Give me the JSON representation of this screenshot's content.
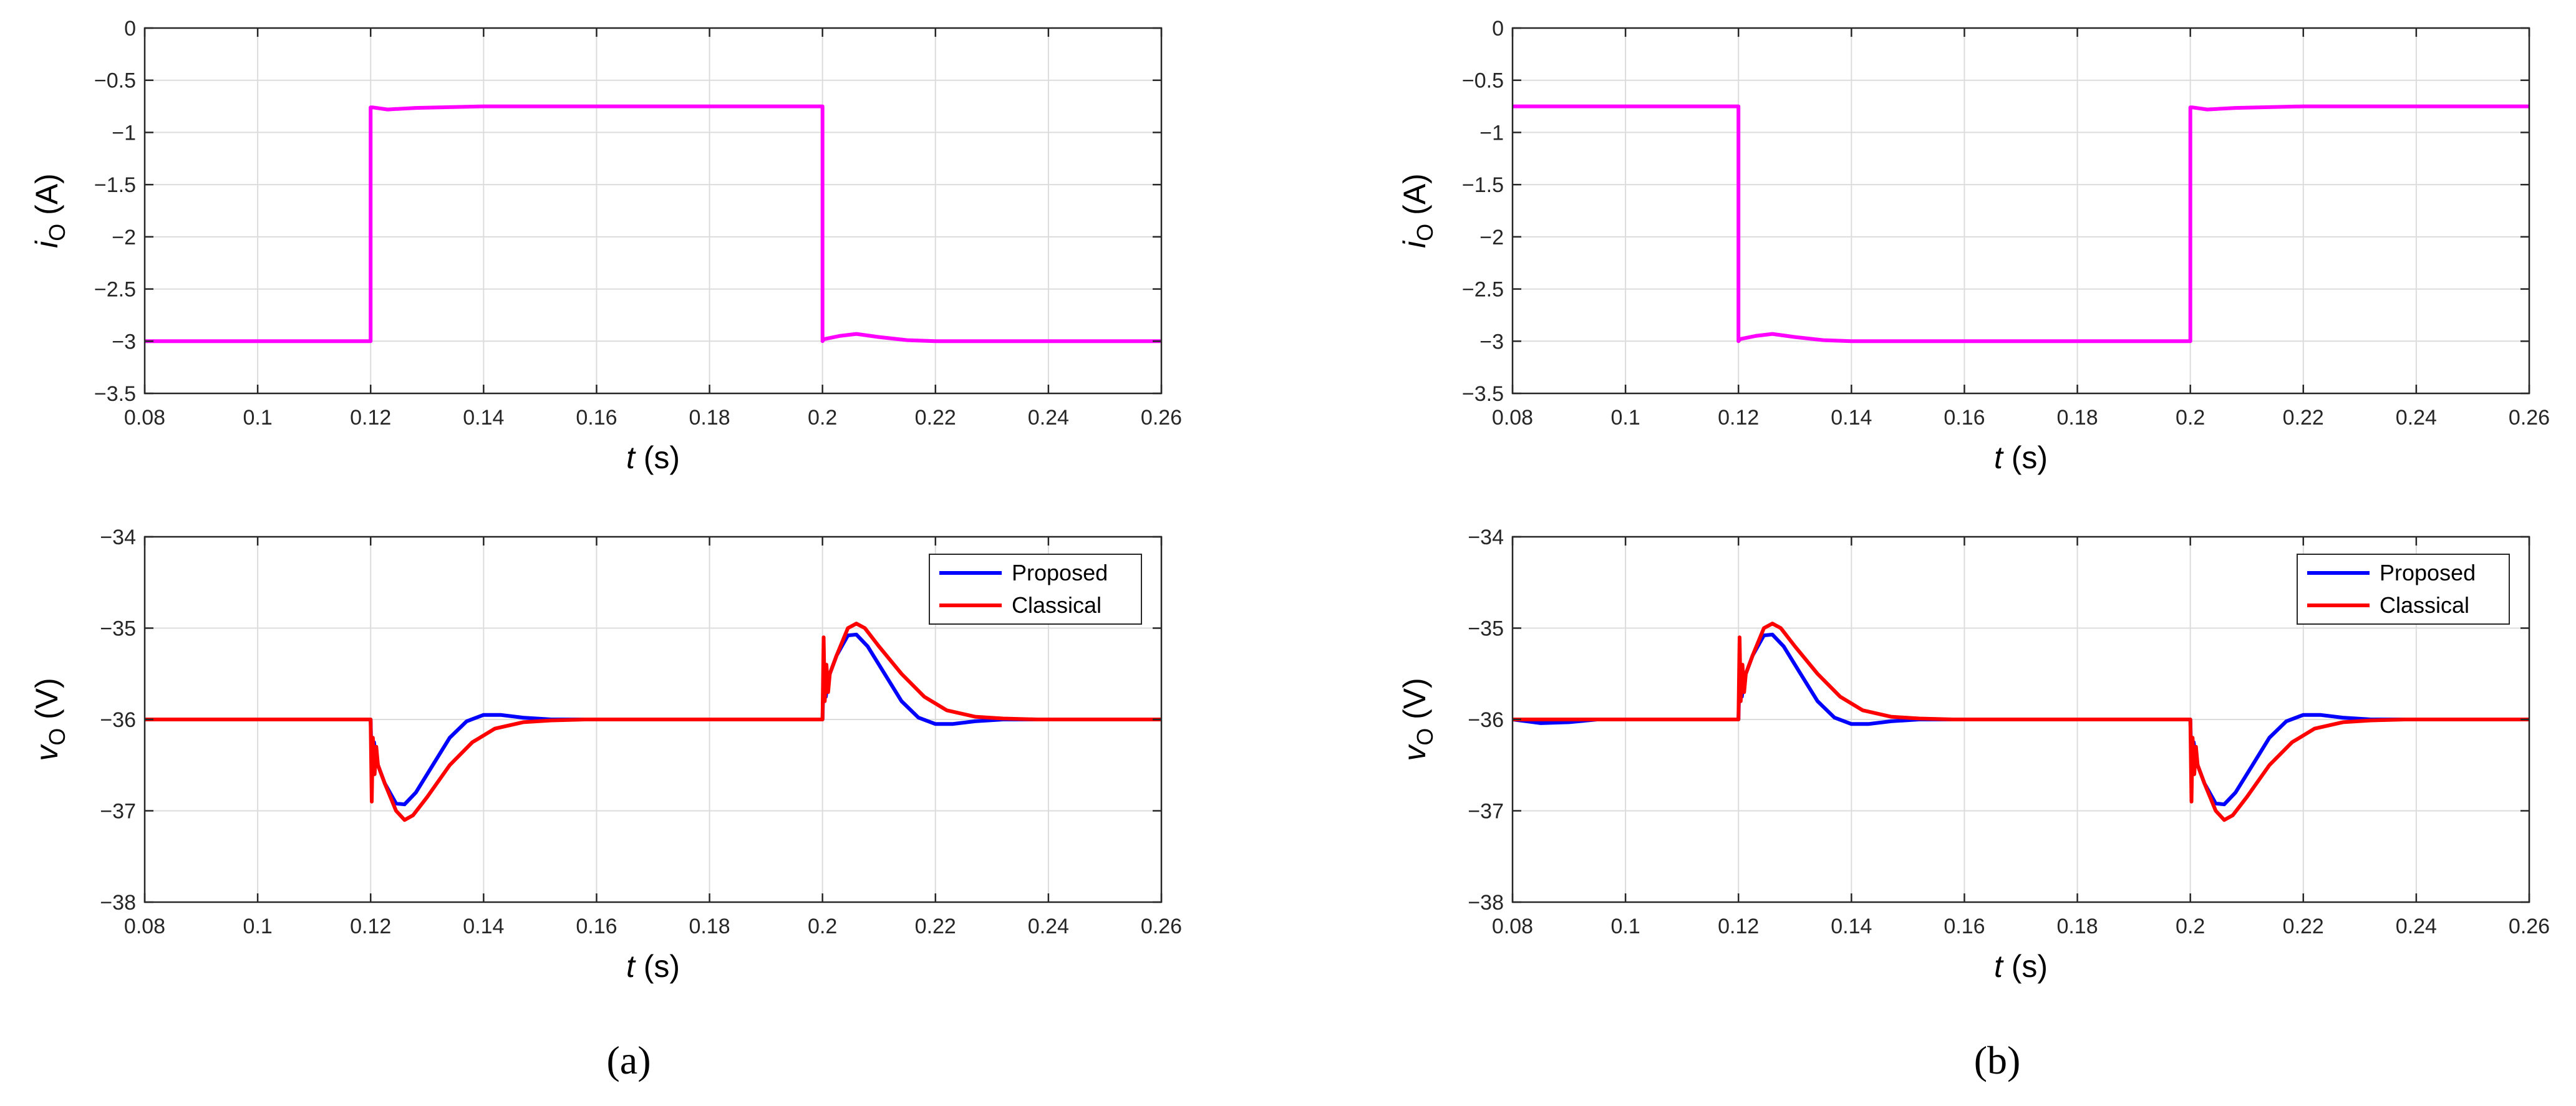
{
  "colors": {
    "current": "#ff00ff",
    "proposed": "#0000ff",
    "classical": "#ff0000",
    "grid": "#dcdcdc",
    "axis": "#262626"
  },
  "panels": [
    {
      "label": "(a)",
      "label_letter": "a"
    },
    {
      "label": "(b)",
      "label_letter": "b"
    }
  ],
  "chart_data": [
    {
      "type": "line",
      "panel": "a",
      "xlabel_var": "t",
      "xlabel_unit": "(s)",
      "ylabel_var": "i",
      "ylabel_sub": "O",
      "ylabel_unit": "(A)",
      "xlim": [
        0.08,
        0.26
      ],
      "ylim": [
        -3.5,
        0
      ],
      "xticks": [
        0.08,
        0.1,
        0.12,
        0.14,
        0.16,
        0.18,
        0.2,
        0.22,
        0.24,
        0.26
      ],
      "xtick_labels": [
        "0.08",
        "0.1",
        "0.12",
        "0.14",
        "0.16",
        "0.18",
        "0.2",
        "0.22",
        "0.24",
        "0.26"
      ],
      "yticks": [
        0,
        -0.5,
        -1,
        -1.5,
        -2,
        -2.5,
        -3,
        -3.5
      ],
      "ytick_labels": [
        "0",
        "−0.5",
        "−1",
        "−1.5",
        "−2",
        "−2.5",
        "−3",
        "−3.5"
      ],
      "grid": true,
      "legend": null,
      "series": [
        {
          "color_key": "current",
          "x": [
            0.08,
            0.12,
            0.12,
            0.1203,
            0.123,
            0.128,
            0.14,
            0.2,
            0.2,
            0.2003,
            0.203,
            0.206,
            0.21,
            0.215,
            0.22,
            0.26
          ],
          "y": [
            -3.0,
            -3.0,
            -0.76,
            -0.76,
            -0.78,
            -0.765,
            -0.75,
            -0.75,
            -3.0,
            -2.98,
            -2.95,
            -2.93,
            -2.96,
            -2.99,
            -3.0,
            -3.0
          ]
        }
      ]
    },
    {
      "type": "line",
      "panel": "a",
      "xlabel_var": "t",
      "xlabel_unit": "(s)",
      "ylabel_var": "v",
      "ylabel_sub": "O",
      "ylabel_unit": "(V)",
      "xlim": [
        0.08,
        0.26
      ],
      "ylim": [
        -38,
        -34
      ],
      "xticks": [
        0.08,
        0.1,
        0.12,
        0.14,
        0.16,
        0.18,
        0.2,
        0.22,
        0.24,
        0.26
      ],
      "xtick_labels": [
        "0.08",
        "0.1",
        "0.12",
        "0.14",
        "0.16",
        "0.18",
        "0.2",
        "0.22",
        "0.24",
        "0.26"
      ],
      "yticks": [
        -34,
        -35,
        -36,
        -37,
        -38
      ],
      "ytick_labels": [
        "−34",
        "−35",
        "−36",
        "−37",
        "−38"
      ],
      "grid": true,
      "legend": "top-right",
      "series": [
        {
          "name": "Proposed",
          "color_key": "proposed",
          "x": [
            0.08,
            0.12,
            0.1202,
            0.1206,
            0.121,
            0.1225,
            0.1245,
            0.126,
            0.128,
            0.131,
            0.134,
            0.137,
            0.14,
            0.143,
            0.147,
            0.152,
            0.2,
            0.2002,
            0.2006,
            0.201,
            0.2025,
            0.2045,
            0.206,
            0.208,
            0.211,
            0.214,
            0.217,
            0.22,
            0.223,
            0.227,
            0.232,
            0.26
          ],
          "y": [
            -36,
            -36,
            -36.5,
            -36.25,
            -36.45,
            -36.7,
            -36.92,
            -36.93,
            -36.8,
            -36.5,
            -36.2,
            -36.02,
            -35.95,
            -35.95,
            -35.98,
            -36.0,
            -36,
            -35.5,
            -35.75,
            -35.55,
            -35.3,
            -35.08,
            -35.07,
            -35.2,
            -35.5,
            -35.8,
            -35.98,
            -36.05,
            -36.05,
            -36.02,
            -36.0,
            -36.0
          ]
        },
        {
          "name": "Classical",
          "color_key": "classical",
          "x": [
            0.08,
            0.12,
            0.1202,
            0.1204,
            0.1207,
            0.121,
            0.1213,
            0.1225,
            0.1245,
            0.126,
            0.1275,
            0.13,
            0.134,
            0.138,
            0.142,
            0.147,
            0.152,
            0.158,
            0.2,
            0.2002,
            0.2004,
            0.2007,
            0.201,
            0.2013,
            0.2025,
            0.2045,
            0.206,
            0.2075,
            0.21,
            0.214,
            0.218,
            0.222,
            0.227,
            0.232,
            0.238,
            0.26
          ],
          "y": [
            -36,
            -36,
            -36.9,
            -36.2,
            -36.6,
            -36.3,
            -36.5,
            -36.7,
            -37.0,
            -37.1,
            -37.05,
            -36.85,
            -36.5,
            -36.25,
            -36.1,
            -36.03,
            -36.01,
            -36.0,
            -36,
            -35.1,
            -35.8,
            -35.4,
            -35.7,
            -35.5,
            -35.3,
            -35.0,
            -34.95,
            -35.0,
            -35.2,
            -35.5,
            -35.75,
            -35.9,
            -35.97,
            -35.99,
            -36.0,
            -36.0
          ]
        }
      ]
    },
    {
      "type": "line",
      "panel": "b",
      "xlabel_var": "t",
      "xlabel_unit": "(s)",
      "ylabel_var": "i",
      "ylabel_sub": "O",
      "ylabel_unit": "(A)",
      "xlim": [
        0.08,
        0.26
      ],
      "ylim": [
        -3.5,
        0
      ],
      "xticks": [
        0.08,
        0.1,
        0.12,
        0.14,
        0.16,
        0.18,
        0.2,
        0.22,
        0.24,
        0.26
      ],
      "xtick_labels": [
        "0.08",
        "0.1",
        "0.12",
        "0.14",
        "0.16",
        "0.18",
        "0.2",
        "0.22",
        "0.24",
        "0.26"
      ],
      "yticks": [
        0,
        -0.5,
        -1,
        -1.5,
        -2,
        -2.5,
        -3,
        -3.5
      ],
      "ytick_labels": [
        "0",
        "−0.5",
        "−1",
        "−1.5",
        "−2",
        "−2.5",
        "−3",
        "−3.5"
      ],
      "grid": true,
      "legend": null,
      "series": [
        {
          "color_key": "current",
          "x": [
            0.08,
            0.12,
            0.12,
            0.1203,
            0.123,
            0.126,
            0.13,
            0.135,
            0.14,
            0.2,
            0.2,
            0.2003,
            0.203,
            0.208,
            0.22,
            0.26
          ],
          "y": [
            -0.75,
            -0.75,
            -3.0,
            -2.98,
            -2.95,
            -2.93,
            -2.96,
            -2.99,
            -3.0,
            -3.0,
            -0.76,
            -0.76,
            -0.78,
            -0.765,
            -0.75,
            -0.75
          ]
        }
      ]
    },
    {
      "type": "line",
      "panel": "b",
      "xlabel_var": "t",
      "xlabel_unit": "(s)",
      "ylabel_var": "v",
      "ylabel_sub": "O",
      "ylabel_unit": "(V)",
      "xlim": [
        0.08,
        0.26
      ],
      "ylim": [
        -38,
        -34
      ],
      "xticks": [
        0.08,
        0.1,
        0.12,
        0.14,
        0.16,
        0.18,
        0.2,
        0.22,
        0.24,
        0.26
      ],
      "xtick_labels": [
        "0.08",
        "0.1",
        "0.12",
        "0.14",
        "0.16",
        "0.18",
        "0.2",
        "0.22",
        "0.24",
        "0.26"
      ],
      "yticks": [
        -34,
        -35,
        -36,
        -37,
        -38
      ],
      "ytick_labels": [
        "−34",
        "−35",
        "−36",
        "−37",
        "−38"
      ],
      "grid": true,
      "legend": "top-right",
      "series": [
        {
          "name": "Proposed",
          "color_key": "proposed",
          "x": [
            0.08,
            0.085,
            0.09,
            0.095,
            0.12,
            0.1202,
            0.1206,
            0.121,
            0.1225,
            0.1245,
            0.126,
            0.128,
            0.131,
            0.134,
            0.137,
            0.14,
            0.143,
            0.147,
            0.152,
            0.2,
            0.2002,
            0.2006,
            0.201,
            0.2025,
            0.2045,
            0.206,
            0.208,
            0.211,
            0.214,
            0.217,
            0.22,
            0.223,
            0.227,
            0.232,
            0.26
          ],
          "y": [
            -36.0,
            -36.04,
            -36.03,
            -36.0,
            -36,
            -35.5,
            -35.75,
            -35.55,
            -35.3,
            -35.08,
            -35.07,
            -35.2,
            -35.5,
            -35.8,
            -35.98,
            -36.05,
            -36.05,
            -36.02,
            -36.0,
            -36,
            -36.5,
            -36.25,
            -36.45,
            -36.7,
            -36.92,
            -36.93,
            -36.8,
            -36.5,
            -36.2,
            -36.02,
            -35.95,
            -35.95,
            -35.98,
            -36.0,
            -36.0
          ]
        },
        {
          "name": "Classical",
          "color_key": "classical",
          "x": [
            0.08,
            0.12,
            0.1202,
            0.1204,
            0.1207,
            0.121,
            0.1213,
            0.1225,
            0.1245,
            0.126,
            0.1275,
            0.13,
            0.134,
            0.138,
            0.142,
            0.147,
            0.152,
            0.158,
            0.2,
            0.2002,
            0.2004,
            0.2007,
            0.201,
            0.2013,
            0.2025,
            0.2045,
            0.206,
            0.2075,
            0.21,
            0.214,
            0.218,
            0.222,
            0.227,
            0.232,
            0.238,
            0.26
          ],
          "y": [
            -36,
            -36,
            -35.1,
            -35.8,
            -35.4,
            -35.7,
            -35.5,
            -35.3,
            -35.0,
            -34.95,
            -35.0,
            -35.2,
            -35.5,
            -35.75,
            -35.9,
            -35.97,
            -35.99,
            -36.0,
            -36,
            -36.9,
            -36.2,
            -36.6,
            -36.3,
            -36.5,
            -36.7,
            -37.0,
            -37.1,
            -37.05,
            -36.85,
            -36.5,
            -36.25,
            -36.1,
            -36.03,
            -36.01,
            -36.0,
            -36.0
          ]
        }
      ]
    }
  ]
}
